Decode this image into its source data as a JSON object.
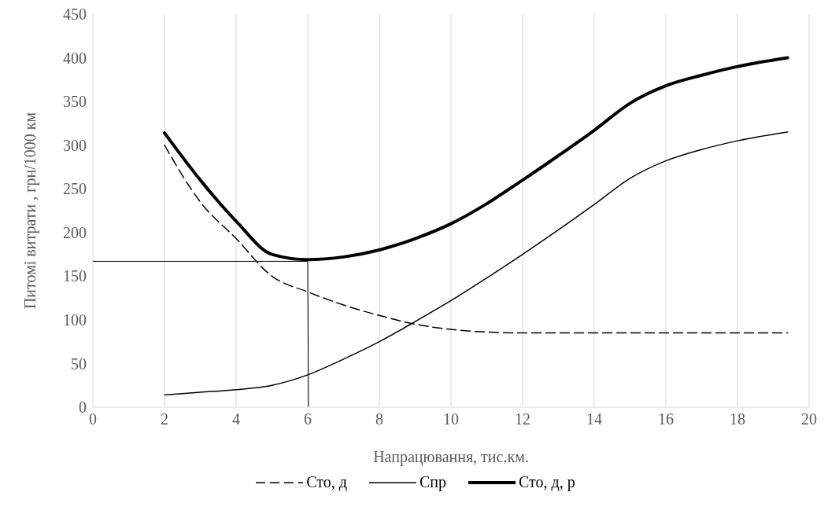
{
  "chart_data": {
    "type": "line",
    "xlabel": "Напрацювання, тис.км.",
    "ylabel": "Питомі витрати , грн/1000 км",
    "xlim": [
      0,
      20
    ],
    "xticks": [
      0,
      2,
      4,
      6,
      8,
      10,
      12,
      14,
      16,
      18,
      20
    ],
    "ylim": [
      0,
      450
    ],
    "yticks": [
      0,
      50,
      100,
      150,
      200,
      250,
      300,
      350,
      400,
      450
    ],
    "grid": "x",
    "legend": "bottom",
    "marker": "none",
    "series": [
      {
        "name": "Сто, д",
        "color": "#000000",
        "line_style": "dashed",
        "x": [
          2,
          3,
          4,
          5,
          6,
          7,
          8,
          9,
          10,
          11,
          12,
          14,
          16,
          18,
          19.4
        ],
        "values": [
          300,
          235,
          193,
          150,
          132,
          117,
          105,
          95,
          89,
          86,
          85,
          85,
          85,
          85,
          85
        ]
      },
      {
        "name": "Спр",
        "color": "#000000",
        "line_style": "solid",
        "x": [
          2,
          3,
          4,
          5,
          6,
          7,
          8,
          9,
          10,
          11,
          12,
          13,
          14,
          15,
          16,
          17,
          18,
          19.4
        ],
        "values": [
          14,
          17,
          20,
          25,
          37,
          55,
          75,
          98,
          122,
          148,
          175,
          203,
          232,
          262,
          282,
          295,
          305,
          315
        ]
      },
      {
        "name": "Сто, д, р",
        "color": "#000000",
        "line_style": "solid",
        "x": [
          2,
          3,
          4,
          5,
          6,
          7,
          8,
          9,
          10,
          11,
          12,
          13,
          14,
          15,
          16,
          17,
          18,
          19.4
        ],
        "values": [
          314,
          260,
          213,
          175,
          169,
          172,
          180,
          193,
          210,
          233,
          260,
          288,
          317,
          348,
          368,
          380,
          390,
          400
        ]
      },
      {
        "color": "#000000",
        "line_style": "solid",
        "x": [
          0,
          6,
          6.02
        ],
        "values": [
          167,
          167,
          0
        ]
      }
    ]
  }
}
